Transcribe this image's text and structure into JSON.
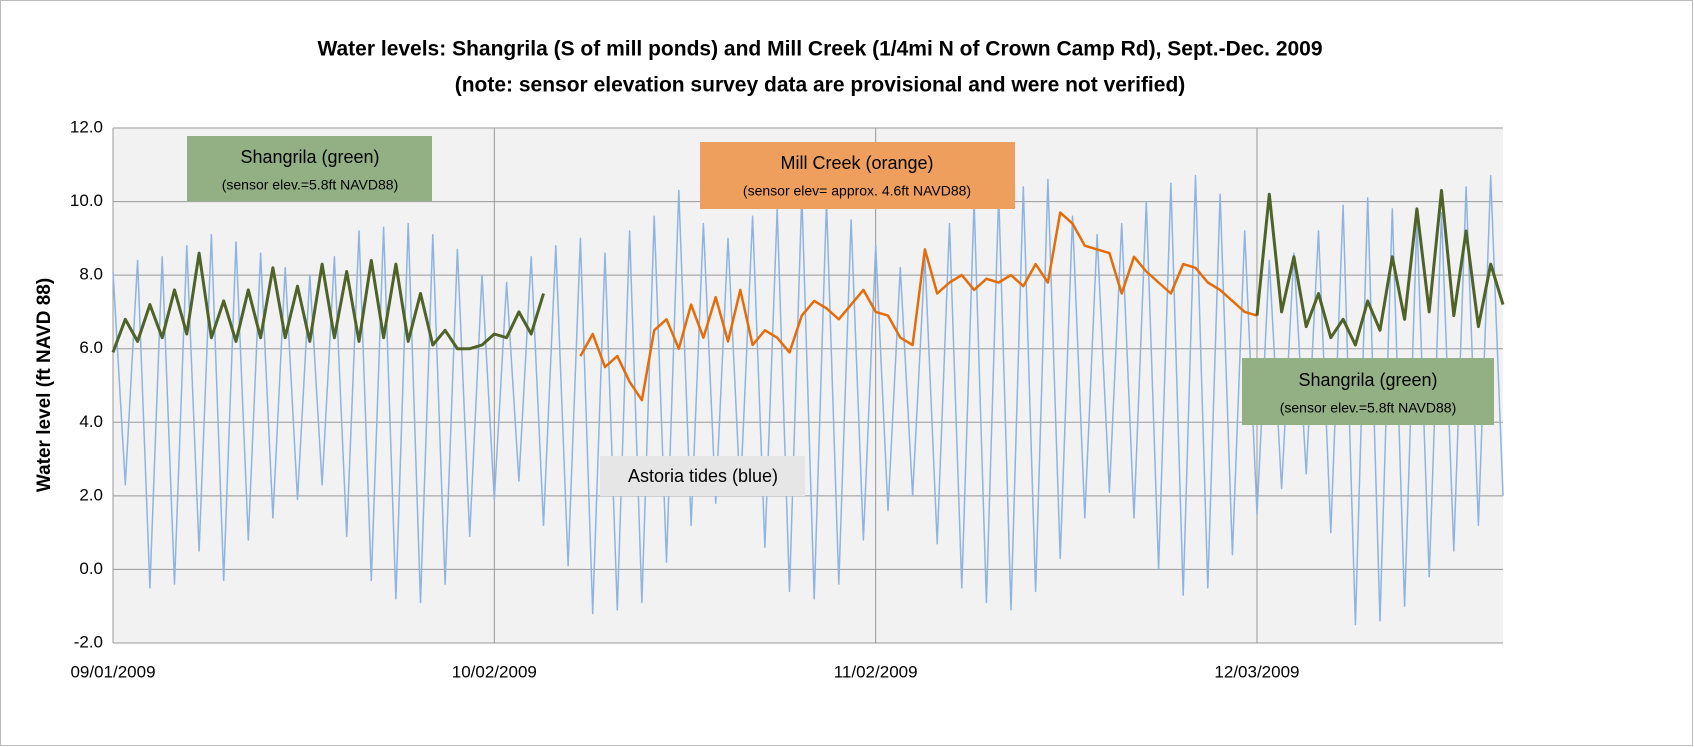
{
  "chart_data": {
    "type": "line",
    "title": "Water levels:  Shangrila (S of mill ponds) and Mill Creek (1/4mi N of Crown Camp Rd), Sept.-Dec. 2009",
    "subtitle": "(note: sensor elevation survey data are provisional and were not verified)",
    "y_label": "Water level (ft NAVD 88)",
    "grid": true,
    "xlim": [
      "2009-09-01",
      "2009-12-23"
    ],
    "xticks": [
      {
        "value": "2009-09-01",
        "label": "09/01/2009"
      },
      {
        "value": "2009-10-02",
        "label": "10/02/2009"
      },
      {
        "value": "2009-11-02",
        "label": "11/02/2009"
      },
      {
        "value": "2009-12-03",
        "label": "12/03/2009"
      }
    ],
    "ylim": [
      -2,
      12
    ],
    "yticks": [
      {
        "value": -2,
        "label": "-2.0"
      },
      {
        "value": 0,
        "label": "0.0"
      },
      {
        "value": 2,
        "label": "2.0"
      },
      {
        "value": 4,
        "label": "4.0"
      },
      {
        "value": 6,
        "label": "6.0"
      },
      {
        "value": 8,
        "label": "8.0"
      },
      {
        "value": 10,
        "label": "10.0"
      },
      {
        "value": 12,
        "label": "12.0"
      }
    ],
    "annotations": [
      {
        "text": "Shangrila (green)",
        "note": "(sensor elev.=5.8ft NAVD88)",
        "color": "#93b084"
      },
      {
        "text": "Mill Creek (orange)",
        "note": "(sensor elev= approx. 4.6ft NAVD88)",
        "color": "#ee9f5e"
      },
      {
        "text": "Shangrila (green)",
        "note": "(sensor elev.=5.8ft NAVD88)",
        "color": "#93b084"
      },
      {
        "text": "Astoria tides (blue)",
        "color": "#e6e6e6"
      }
    ],
    "x": [
      "2009-09-01",
      "2009-09-02",
      "2009-09-03",
      "2009-09-04",
      "2009-09-05",
      "2009-09-06",
      "2009-09-07",
      "2009-09-08",
      "2009-09-09",
      "2009-09-10",
      "2009-09-11",
      "2009-09-12",
      "2009-09-13",
      "2009-09-14",
      "2009-09-15",
      "2009-09-16",
      "2009-09-17",
      "2009-09-18",
      "2009-09-19",
      "2009-09-20",
      "2009-09-21",
      "2009-09-22",
      "2009-09-23",
      "2009-09-24",
      "2009-09-25",
      "2009-09-26",
      "2009-09-27",
      "2009-09-28",
      "2009-09-29",
      "2009-09-30",
      "2009-10-01",
      "2009-10-02",
      "2009-10-03",
      "2009-10-04",
      "2009-10-05",
      "2009-10-06",
      "2009-10-07",
      "2009-10-08",
      "2009-10-09",
      "2009-10-10",
      "2009-10-11",
      "2009-10-12",
      "2009-10-13",
      "2009-10-14",
      "2009-10-15",
      "2009-10-16",
      "2009-10-17",
      "2009-10-18",
      "2009-10-19",
      "2009-10-20",
      "2009-10-21",
      "2009-10-22",
      "2009-10-23",
      "2009-10-24",
      "2009-10-25",
      "2009-10-26",
      "2009-10-27",
      "2009-10-28",
      "2009-10-29",
      "2009-10-30",
      "2009-10-31",
      "2009-11-01",
      "2009-11-02",
      "2009-11-03",
      "2009-11-04",
      "2009-11-05",
      "2009-11-06",
      "2009-11-07",
      "2009-11-08",
      "2009-11-09",
      "2009-11-10",
      "2009-11-11",
      "2009-11-12",
      "2009-11-13",
      "2009-11-14",
      "2009-11-15",
      "2009-11-16",
      "2009-11-17",
      "2009-11-18",
      "2009-11-19",
      "2009-11-20",
      "2009-11-21",
      "2009-11-22",
      "2009-11-23",
      "2009-11-24",
      "2009-11-25",
      "2009-11-26",
      "2009-11-27",
      "2009-11-28",
      "2009-11-29",
      "2009-11-30",
      "2009-12-01",
      "2009-12-02",
      "2009-12-03",
      "2009-12-04",
      "2009-12-05",
      "2009-12-06",
      "2009-12-07",
      "2009-12-08",
      "2009-12-09",
      "2009-12-10",
      "2009-12-11",
      "2009-12-12",
      "2009-12-13",
      "2009-12-14",
      "2009-12-15",
      "2009-12-16",
      "2009-12-17",
      "2009-12-18",
      "2009-12-19",
      "2009-12-20",
      "2009-12-21",
      "2009-12-22",
      "2009-12-23"
    ],
    "series": [
      {
        "name": "Astoria tides (blue)",
        "color": "#8db4e2",
        "width": 1.5,
        "values": [
          8.1,
          2.3,
          8.4,
          -0.5,
          8.5,
          -0.4,
          8.8,
          0.5,
          9.1,
          -0.3,
          8.9,
          0.8,
          8.6,
          1.4,
          8.2,
          1.9,
          8.0,
          2.3,
          8.5,
          0.9,
          9.2,
          -0.3,
          9.3,
          -0.8,
          9.4,
          -0.9,
          9.1,
          -0.4,
          8.7,
          0.9,
          8.0,
          1.9,
          7.8,
          2.4,
          8.5,
          1.2,
          8.8,
          0.1,
          9.0,
          -1.2,
          8.6,
          -1.1,
          9.2,
          -0.9,
          9.6,
          0.2,
          10.3,
          1.2,
          9.4,
          1.8,
          9.0,
          2.0,
          9.6,
          0.6,
          9.8,
          -0.6,
          10.2,
          -0.8,
          10.0,
          -0.4,
          9.5,
          0.8,
          8.8,
          1.6,
          8.2,
          2.0,
          8.5,
          0.7,
          9.4,
          -0.5,
          10.0,
          -0.9,
          10.2,
          -1.1,
          10.4,
          -0.6,
          10.6,
          0.3,
          9.6,
          1.4,
          9.1,
          2.1,
          9.4,
          1.4,
          10.0,
          0.0,
          10.5,
          -0.7,
          10.7,
          -0.5,
          10.2,
          0.4,
          9.2,
          1.5,
          8.4,
          2.2,
          8.6,
          2.6,
          9.2,
          1.0,
          9.9,
          -1.5,
          10.1,
          -1.4,
          9.8,
          -1.0,
          9.5,
          -0.2,
          9.7,
          0.5,
          10.4,
          1.2,
          10.7,
          2.0
        ]
      },
      {
        "name": "Mill Creek (orange)",
        "color": "#e46c0a",
        "width": 2.5,
        "values": [
          null,
          null,
          null,
          null,
          null,
          null,
          null,
          null,
          null,
          null,
          null,
          null,
          null,
          null,
          null,
          null,
          null,
          null,
          null,
          null,
          null,
          null,
          null,
          null,
          null,
          null,
          null,
          null,
          null,
          null,
          null,
          null,
          null,
          null,
          null,
          null,
          null,
          null,
          5.8,
          6.4,
          5.5,
          5.8,
          5.1,
          4.6,
          6.5,
          6.8,
          6.0,
          7.2,
          6.3,
          7.4,
          6.2,
          7.6,
          6.1,
          6.5,
          6.3,
          5.9,
          6.9,
          7.3,
          7.1,
          6.8,
          7.2,
          7.6,
          7.0,
          6.9,
          6.3,
          6.1,
          8.7,
          7.5,
          7.8,
          8.0,
          7.6,
          7.9,
          7.8,
          8.0,
          7.7,
          8.3,
          7.8,
          9.7,
          9.4,
          8.8,
          8.7,
          8.6,
          7.5,
          8.5,
          8.1,
          7.8,
          7.5,
          8.3,
          8.2,
          7.8,
          7.6,
          7.3,
          7.0,
          6.9,
          null,
          null,
          null,
          null,
          null,
          null,
          null,
          null,
          null,
          null,
          null,
          null,
          null,
          null,
          null,
          null,
          null,
          null,
          null,
          null
        ]
      },
      {
        "name": "Shangrila (green)",
        "color": "#4f6228",
        "width": 3,
        "values": [
          5.9,
          6.8,
          6.2,
          7.2,
          6.3,
          7.6,
          6.4,
          8.6,
          6.3,
          7.3,
          6.2,
          7.6,
          6.3,
          8.2,
          6.3,
          7.7,
          6.2,
          8.3,
          6.3,
          8.1,
          6.2,
          8.4,
          6.3,
          8.3,
          6.2,
          7.5,
          6.1,
          6.5,
          6.0,
          6.0,
          6.1,
          6.4,
          6.3,
          7.0,
          6.4,
          7.5,
          null,
          null,
          null,
          null,
          null,
          null,
          null,
          null,
          null,
          null,
          null,
          null,
          null,
          null,
          null,
          null,
          null,
          null,
          null,
          null,
          null,
          null,
          null,
          null,
          null,
          null,
          null,
          null,
          null,
          null,
          null,
          null,
          null,
          null,
          null,
          null,
          null,
          null,
          null,
          null,
          null,
          null,
          null,
          null,
          null,
          null,
          null,
          null,
          null,
          null,
          null,
          null,
          null,
          null,
          null,
          null,
          null,
          6.9,
          10.2,
          7.0,
          8.5,
          6.6,
          7.5,
          6.3,
          6.8,
          6.1,
          7.3,
          6.5,
          8.5,
          6.8,
          9.8,
          7.0,
          10.3,
          6.9,
          9.2,
          6.6,
          8.3,
          7.2
        ]
      }
    ]
  }
}
